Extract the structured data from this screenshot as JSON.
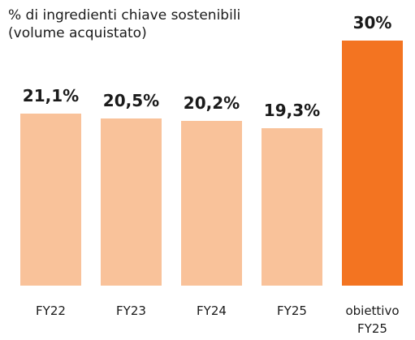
{
  "chart_data": {
    "type": "bar",
    "title": "% di ingredienti chiave sostenibili (volume acquistato)",
    "categories": [
      "FY22",
      "FY23",
      "FY24",
      "FY25",
      "obiettivo FY25"
    ],
    "values": [
      21.1,
      20.5,
      20.2,
      19.3,
      30
    ],
    "value_labels": [
      "21,1%",
      "20,5%",
      "20,2%",
      "19,3%",
      "30%"
    ],
    "colors": [
      "#f9c29a",
      "#f9c29a",
      "#f9c29a",
      "#f9c29a",
      "#f37421"
    ]
  }
}
